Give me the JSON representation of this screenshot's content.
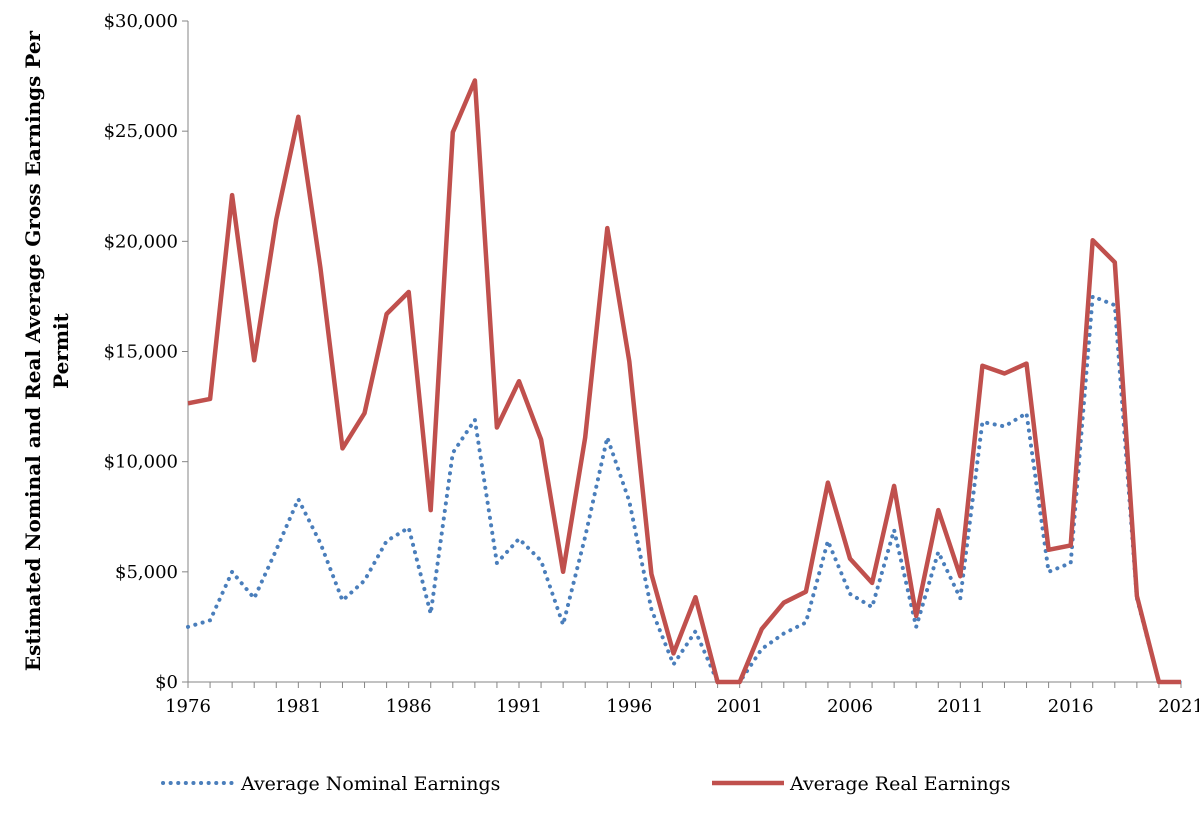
{
  "chart_data": {
    "type": "line",
    "title": "",
    "xlabel": "",
    "ylabel": "Estimated Nominal and Real Average Gross Earnings Per Permit",
    "ylabel_lines": [
      "Estimated Nominal and Real Average Gross Earnings Per",
      "Permit"
    ],
    "xlim": [
      1976,
      2021
    ],
    "ylim": [
      0,
      30000
    ],
    "x_ticks": [
      "1976",
      "1981",
      "1986",
      "1991",
      "1996",
      "2001",
      "2006",
      "2011",
      "2016",
      "2021"
    ],
    "y_ticks": [
      "$0",
      "$5,000",
      "$10,000",
      "$15,000",
      "$20,000",
      "$25,000",
      "$30,000"
    ],
    "grid": false,
    "legend_position": "bottom",
    "x": [
      1976,
      1977,
      1978,
      1979,
      1980,
      1981,
      1982,
      1983,
      1984,
      1985,
      1986,
      1987,
      1988,
      1989,
      1990,
      1991,
      1992,
      1993,
      1994,
      1995,
      1996,
      1997,
      1998,
      1999,
      2000,
      2001,
      2002,
      2003,
      2004,
      2005,
      2006,
      2007,
      2008,
      2009,
      2010,
      2011,
      2012,
      2013,
      2014,
      2015,
      2016,
      2017,
      2018,
      2019,
      2020,
      2021
    ],
    "series": [
      {
        "name": "Average Nominal Earnings",
        "style": "dotted",
        "color": "#4a7ebb",
        "values": [
          2500,
          2800,
          5000,
          3800,
          6000,
          8300,
          6300,
          3700,
          4600,
          6400,
          7000,
          3100,
          10400,
          11900,
          5400,
          6500,
          5500,
          2600,
          6600,
          11100,
          8200,
          3300,
          800,
          2300,
          0,
          0,
          1500,
          2200,
          2700,
          6400,
          4000,
          3400,
          6900,
          2500,
          5900,
          3800,
          11800,
          11600,
          12200,
          5000,
          5400,
          17500,
          17100,
          3800,
          0,
          0
        ]
      },
      {
        "name": "Average Real Earnings",
        "style": "solid",
        "color": "#c0504d",
        "values": [
          12650,
          12850,
          22100,
          14600,
          21000,
          25650,
          18800,
          10600,
          12200,
          16700,
          17700,
          7800,
          24950,
          27300,
          11550,
          13650,
          11000,
          5000,
          11100,
          20600,
          14550,
          4900,
          1300,
          3850,
          0,
          0,
          2400,
          3600,
          4100,
          9050,
          5600,
          4500,
          8900,
          3000,
          7800,
          4800,
          14350,
          14000,
          14450,
          6000,
          6200,
          20050,
          19050,
          3900,
          0,
          0
        ]
      }
    ]
  }
}
